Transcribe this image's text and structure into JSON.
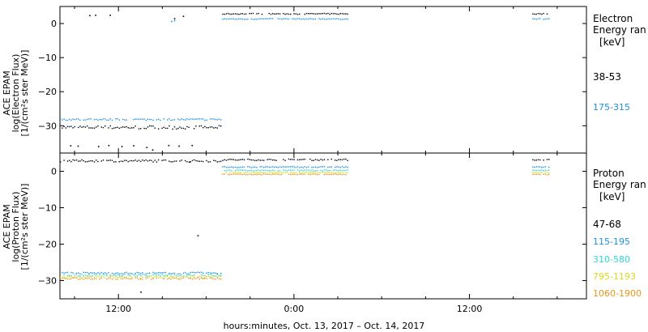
{
  "chart_data": [
    {
      "type": "scatter",
      "panel": "electron",
      "ylabel_lines": [
        "ACE EPAM",
        "log(Electron Flux)",
        "[1/(cm²s ster MeV)]"
      ],
      "ylim": [
        -38,
        5
      ],
      "yticks": [
        0,
        -10,
        -20,
        -30
      ],
      "ytick_labels": [
        "0",
        "−10",
        "−20",
        "−30"
      ],
      "legend": {
        "title_lines": [
          "Electron",
          "Energy ran",
          "[keV]"
        ],
        "placement": "right"
      },
      "series": [
        {
          "name": "38-53",
          "color": "#000000",
          "segments": [
            {
              "x_start": 8.0,
              "x_end": 19.0,
              "y": -30.3,
              "jitter": 0.5
            },
            {
              "x_start": 19.1,
              "x_end": 27.7,
              "y": 3.0,
              "jitter": 0.15
            },
            {
              "x_start": 40.3,
              "x_end": 41.5,
              "y": 3.0,
              "jitter": 0.15
            }
          ],
          "points": [
            {
              "x": 10.0,
              "y": 2.5
            },
            {
              "x": 10.4,
              "y": 2.6
            },
            {
              "x": 11.4,
              "y": 2.6
            },
            {
              "x": 15.8,
              "y": 1.6
            },
            {
              "x": 16.4,
              "y": 2.3
            },
            {
              "x": 8.7,
              "y": -35.7
            },
            {
              "x": 9.2,
              "y": -35.8
            },
            {
              "x": 10.6,
              "y": -35.9
            },
            {
              "x": 11.3,
              "y": -35.6
            },
            {
              "x": 12.2,
              "y": -35.9
            },
            {
              "x": 13.0,
              "y": -35.7
            },
            {
              "x": 13.9,
              "y": -36.2
            },
            {
              "x": 14.3,
              "y": -36.9
            },
            {
              "x": 15.4,
              "y": -35.6
            },
            {
              "x": 16.1,
              "y": -35.8
            },
            {
              "x": 17.0,
              "y": -35.6
            }
          ]
        },
        {
          "name": "175-315",
          "color": "#1f8fe0",
          "segments": [
            {
              "x_start": 8.0,
              "x_end": 19.0,
              "y": -28.0,
              "jitter": 0.25
            },
            {
              "x_start": 19.1,
              "x_end": 27.7,
              "y": 1.5,
              "jitter": 0.12
            },
            {
              "x_start": 40.3,
              "x_end": 41.5,
              "y": 1.5,
              "jitter": 0.12
            }
          ],
          "points": [
            {
              "x": 15.6,
              "y": 0.8
            },
            {
              "x": 15.8,
              "y": 1.0
            }
          ]
        }
      ]
    },
    {
      "type": "scatter",
      "panel": "proton",
      "ylabel_lines": [
        "ACE EPAM",
        "log(Proton Flux)",
        "[1/(cm²s ster MeV)]"
      ],
      "ylim": [
        -35,
        5
      ],
      "yticks": [
        0,
        -10,
        -20,
        -30
      ],
      "ytick_labels": [
        "0",
        "−10",
        "−20",
        "−30"
      ],
      "xlim": [
        8.0,
        44.0
      ],
      "xticks": [
        12,
        24,
        36
      ],
      "xtick_labels": [
        "12:00",
        "0:00",
        "12:00"
      ],
      "xlabel": "hours:minutes, Oct. 13, 2017 – Oct. 14, 2017",
      "legend": {
        "title_lines": [
          "Proton",
          "Energy ran",
          "[keV]"
        ],
        "placement": "right"
      },
      "series": [
        {
          "name": "47-68",
          "color": "#000000",
          "segments": [
            {
              "x_start": 8.0,
              "x_end": 19.0,
              "y": 3.0,
              "jitter": 0.3
            },
            {
              "x_start": 19.1,
              "x_end": 27.7,
              "y": 3.3,
              "jitter": 0.2
            },
            {
              "x_start": 40.3,
              "x_end": 41.5,
              "y": 3.3,
              "jitter": 0.15
            }
          ],
          "points": [
            {
              "x": 17.4,
              "y": -17.5
            },
            {
              "x": 13.5,
              "y": -33.0
            },
            {
              "x": 16.8,
              "y": 2.7
            }
          ]
        },
        {
          "name": "115-195",
          "color": "#1f8fe0",
          "segments": [
            {
              "x_start": 8.0,
              "x_end": 19.0,
              "y": -27.8,
              "jitter": 0.25
            },
            {
              "x_start": 19.1,
              "x_end": 27.7,
              "y": 1.3,
              "jitter": 0.15
            },
            {
              "x_start": 40.3,
              "x_end": 41.5,
              "y": 1.3,
              "jitter": 0.12
            }
          ],
          "points": []
        },
        {
          "name": "310-580",
          "color": "#2ed6d6",
          "segments": [
            {
              "x_start": 8.0,
              "x_end": 19.0,
              "y": -28.4,
              "jitter": 0.25
            },
            {
              "x_start": 19.1,
              "x_end": 27.7,
              "y": 0.4,
              "jitter": 0.15
            },
            {
              "x_start": 40.3,
              "x_end": 41.5,
              "y": 0.4,
              "jitter": 0.12
            }
          ],
          "points": []
        },
        {
          "name": "795-1193",
          "color": "#d9d91a",
          "segments": [
            {
              "x_start": 8.0,
              "x_end": 19.0,
              "y": -28.9,
              "jitter": 0.25
            },
            {
              "x_start": 19.1,
              "x_end": 27.7,
              "y": -0.2,
              "jitter": 0.12
            },
            {
              "x_start": 40.3,
              "x_end": 41.5,
              "y": -0.2,
              "jitter": 0.12
            }
          ],
          "points": []
        },
        {
          "name": "1060-1900",
          "color": "#e8961c",
          "segments": [
            {
              "x_start": 8.0,
              "x_end": 19.0,
              "y": -29.3,
              "jitter": 0.25
            },
            {
              "x_start": 19.1,
              "x_end": 27.7,
              "y": -0.7,
              "jitter": 0.12
            },
            {
              "x_start": 40.3,
              "x_end": 41.5,
              "y": -0.7,
              "jitter": 0.12
            }
          ],
          "points": []
        }
      ]
    }
  ]
}
